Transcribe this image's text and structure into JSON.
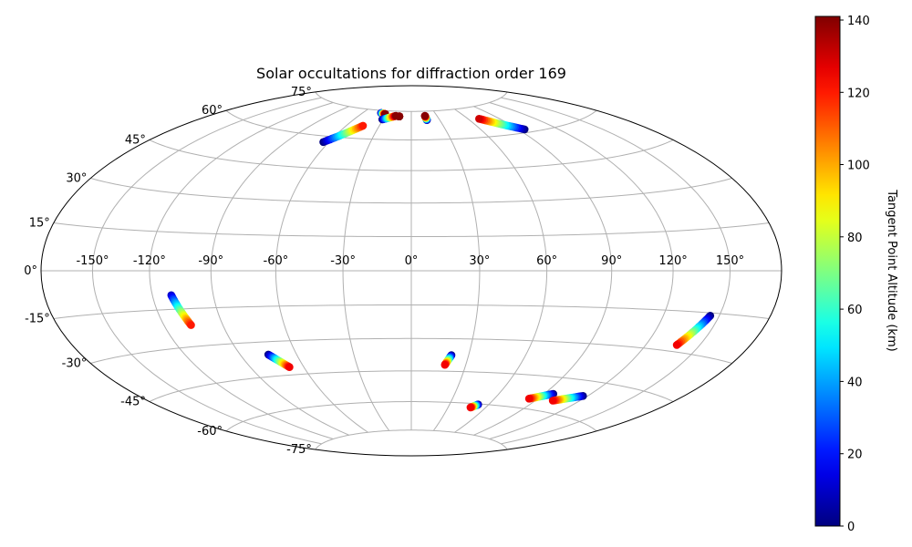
{
  "chart_data": {
    "type": "scatter",
    "projection": "hammer",
    "title": "Solar occultations for diffraction order 169",
    "grid": true,
    "lon_ticks": [
      -150,
      -120,
      -90,
      -60,
      -30,
      0,
      30,
      60,
      90,
      120,
      150
    ],
    "lon_tick_labels": [
      "-150°",
      "-120°",
      "-90°",
      "-60°",
      "-30°",
      "0°",
      "30°",
      "60°",
      "90°",
      "120°",
      "150°"
    ],
    "lat_ticks": [
      -75,
      -60,
      -45,
      -30,
      -15,
      0,
      15,
      30,
      45,
      60,
      75
    ],
    "lat_tick_labels": [
      "-75°",
      "-60°",
      "-45°",
      "-30°",
      "-15°",
      "0°",
      "15°",
      "30°",
      "45°",
      "60°",
      "75°"
    ],
    "colorbar": {
      "label": "Tangent Point Altitude (km)",
      "range": [
        0,
        141
      ],
      "ticks": [
        0,
        20,
        40,
        60,
        80,
        100,
        120,
        140
      ],
      "tick_labels": [
        "0",
        "20",
        "40",
        "60",
        "80",
        "100",
        "120",
        "140"
      ],
      "colormap": "jet"
    },
    "tracks": [
      {
        "lon": [
          -38,
          -32
        ],
        "lat": [
          73.6,
          73.2
        ],
        "alt": [
          0,
          140
        ]
      },
      {
        "lon": [
          -31,
          -18
        ],
        "lat": [
          70.3,
          72.5
        ],
        "alt": [
          0,
          140
        ]
      },
      {
        "lon": [
          -14,
          -14
        ],
        "lat": [
          72.2,
          72.2
        ],
        "alt": [
          140,
          140
        ]
      },
      {
        "lon": [
          16,
          16.5
        ],
        "lat": [
          72.5,
          70.2
        ],
        "alt": [
          140,
          0
        ]
      },
      {
        "lon": [
          -64,
          -45
        ],
        "lat": [
          57.2,
          66.5
        ],
        "alt": [
          0,
          120
        ]
      },
      {
        "lon": [
          71,
          95
        ],
        "lat": [
          69,
          61.5
        ],
        "alt": [
          130,
          0
        ]
      },
      {
        "lon": [
          -110.5,
          -106
        ],
        "lat": [
          -9.5,
          -21.5
        ],
        "alt": [
          10,
          120
        ]
      },
      {
        "lon": [
          -75,
          -68
        ],
        "lat": [
          -35.5,
          -41.5
        ],
        "alt": [
          0,
          125
        ]
      },
      {
        "lon": [
          21,
          18.5
        ],
        "lat": [
          -37.5,
          -42
        ],
        "alt": [
          0,
          125
        ]
      },
      {
        "lon": [
          52,
          48
        ],
        "lat": [
          -60.3,
          -62
        ],
        "alt": [
          0,
          125
        ]
      },
      {
        "lon": [
          96,
          84
        ],
        "lat": [
          -52.2,
          -55.5
        ],
        "alt": [
          0,
          125
        ]
      },
      {
        "lon": [
          117,
          102
        ],
        "lat": [
          -51.2,
          -55
        ],
        "alt": [
          0,
          125
        ]
      },
      {
        "lon": [
          145,
          137
        ],
        "lat": [
          -16,
          -27.5
        ],
        "alt": [
          0,
          125
        ]
      }
    ]
  }
}
